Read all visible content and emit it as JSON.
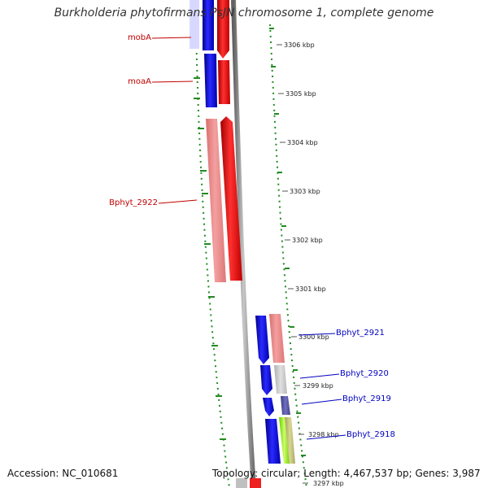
{
  "title": "Burkholderia phytofirmans PsJN chromosome 1, complete genome",
  "accession": "Accession: NC_010681",
  "summary": "Topology: circular; Length: 4,467,537 bp; Genes: 3,987",
  "colors": {
    "forward_cds": "#ee0000",
    "forward_cds_light": "#ee8888",
    "reverse_cds": "#0000ee",
    "reverse_cds_light": "#ee8888",
    "backbone": "#888888",
    "gc_dots": "#228b22",
    "fwd_label": "#c00000",
    "rev_label": "#0000c0"
  },
  "ticks": [
    "3306 kbp",
    "3305 kbp",
    "3304 kbp",
    "3303 kbp",
    "3302 kbp",
    "3301 kbp",
    "3300 kbp",
    "3299 kbp",
    "3298 kbp",
    "3297 kbp"
  ],
  "genes_forward": [
    {
      "label": "mobA"
    },
    {
      "label": "moaA"
    },
    {
      "label": "Bphyt_2922"
    }
  ],
  "genes_reverse": [
    {
      "label": "Bphyt_2921"
    },
    {
      "label": "Bphyt_2920"
    },
    {
      "label": "Bphyt_2919"
    },
    {
      "label": "Bphyt_2918"
    }
  ]
}
